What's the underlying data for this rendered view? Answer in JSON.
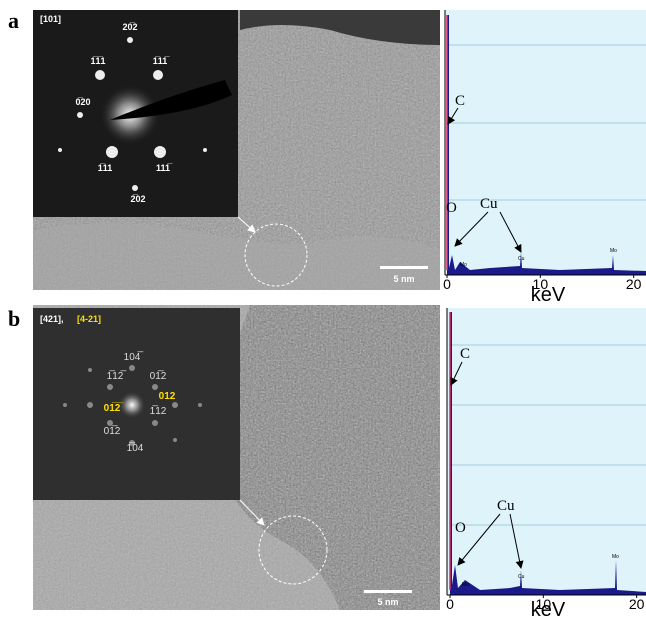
{
  "figure": {
    "panels": [
      {
        "label": "a",
        "inset": {
          "zone": "[101]",
          "spots": [
            "20̅2",
            "1̅1̅1",
            "1̅11̅",
            "0̅20",
            "1̅11",
            "111̅",
            "2̅02"
          ]
        },
        "scale_bar": "5 nm",
        "spectrum": {
          "x_label": "keV",
          "xlim": [
            0,
            21
          ],
          "xticks": [
            0,
            10,
            20
          ],
          "peak_labels": [
            "C",
            "O",
            "Cu"
          ],
          "minor_labels": [
            "Mo",
            "Cu",
            "Mo"
          ]
        }
      },
      {
        "label": "b",
        "inset": {
          "zone": "[421],",
          "zone_alt": "[4-21]",
          "spots": [
            "104̅",
            "1̅12̅",
            "01̅2",
            "012",
            "01̅2̅",
            "1̅12",
            "01̅2",
            "1̅04"
          ]
        },
        "scale_bar": "5 nm",
        "spectrum": {
          "x_label": "keV",
          "xlim": [
            0,
            21
          ],
          "xticks": [
            0,
            10,
            20
          ],
          "peak_labels": [
            "C",
            "O",
            "Cu"
          ],
          "minor_labels": [
            "Mo",
            "Cu",
            "Mo"
          ]
        }
      }
    ]
  }
}
